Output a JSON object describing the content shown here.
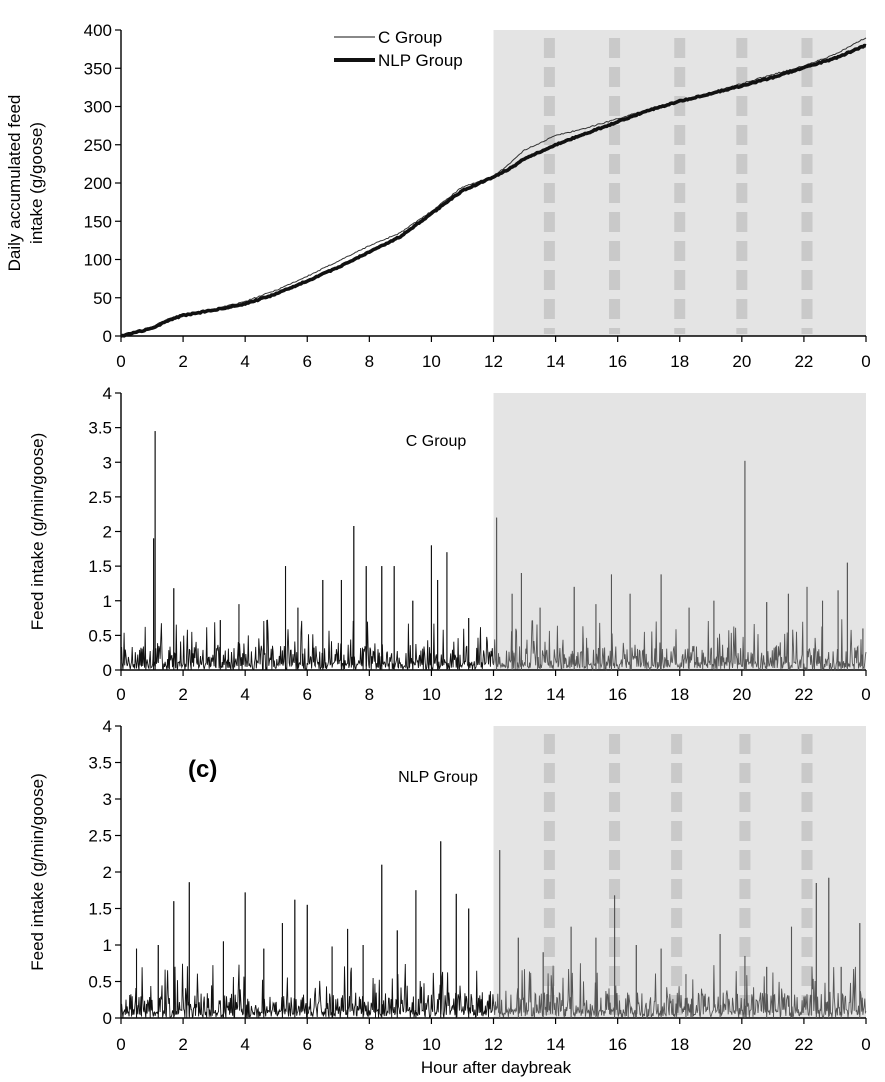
{
  "chart_data": [
    {
      "type": "line",
      "id": "panel-a",
      "ylabel_lines": [
        "Daily accumulated feed",
        "intake (g/goose)"
      ],
      "xlabel": "",
      "ylim": [
        0,
        400
      ],
      "yticks": [
        "0",
        "50",
        "100",
        "150",
        "200",
        "250",
        "300",
        "350",
        "400"
      ],
      "xlim": [
        0,
        24
      ],
      "xticks": [
        "0",
        "2",
        "4",
        "6",
        "8",
        "10",
        "12",
        "14",
        "16",
        "18",
        "20",
        "22",
        "0"
      ],
      "dark_period": [
        12,
        24
      ],
      "light_pulses": [
        13.8,
        15.9,
        18.0,
        20.0,
        22.1
      ],
      "legend": [
        {
          "name": "C Group",
          "style": "thin"
        },
        {
          "name": "NLP Group",
          "style": "thick"
        }
      ],
      "series": [
        {
          "name": "C Group",
          "x": [
            0,
            1,
            1.5,
            2,
            3,
            4,
            5,
            6,
            7,
            8,
            9,
            10,
            11,
            12,
            12.5,
            13,
            14,
            15,
            16,
            17,
            18,
            19,
            20,
            21,
            22,
            23,
            24
          ],
          "values": [
            0,
            12,
            22,
            28,
            35,
            45,
            60,
            78,
            98,
            118,
            135,
            163,
            195,
            208,
            225,
            243,
            262,
            272,
            284,
            296,
            307,
            318,
            330,
            342,
            353,
            368,
            390
          ]
        },
        {
          "name": "NLP Group",
          "x": [
            0,
            1,
            1.5,
            2,
            3,
            4,
            5,
            6,
            7,
            8,
            9,
            10,
            11,
            12,
            12.5,
            13,
            14,
            15,
            16,
            17,
            18,
            19,
            20,
            21,
            22,
            23,
            24
          ],
          "values": [
            0,
            10,
            20,
            27,
            34,
            42,
            55,
            72,
            90,
            110,
            130,
            160,
            190,
            208,
            218,
            232,
            250,
            265,
            280,
            295,
            307,
            317,
            327,
            338,
            351,
            363,
            380
          ]
        }
      ]
    },
    {
      "type": "line",
      "id": "panel-b",
      "ylabel": "Feed intake (g/min/goose)",
      "annotation": "C Group",
      "ylim": [
        0,
        4
      ],
      "yticks": [
        "0",
        "0.5",
        "1",
        "1.5",
        "2",
        "2.5",
        "3",
        "3.5",
        "4"
      ],
      "xlim": [
        0,
        24
      ],
      "xticks": [
        "0",
        "2",
        "4",
        "6",
        "8",
        "10",
        "12",
        "14",
        "16",
        "18",
        "20",
        "22",
        "0"
      ],
      "dark_period": [
        12,
        24
      ],
      "baseline": [
        0,
        0.3
      ],
      "peaks": {
        "x": [
          1.1,
          1.05,
          1.7,
          3.2,
          3.8,
          4.7,
          5.3,
          5.7,
          6.5,
          7.1,
          7.5,
          7.9,
          8.4,
          8.8,
          9.4,
          10.0,
          10.2,
          10.5,
          11.2,
          12.1,
          12.6,
          12.9,
          13.5,
          14.6,
          15.3,
          15.8,
          16.4,
          17.4,
          18.3,
          19.1,
          20.1,
          20.8,
          21.5,
          22.1,
          22.6,
          23.1,
          23.4,
          23.9
        ],
        "values": [
          3.45,
          1.9,
          1.18,
          0.72,
          0.95,
          0.72,
          1.5,
          0.9,
          1.3,
          1.3,
          2.08,
          1.5,
          1.5,
          1.5,
          1.0,
          1.8,
          1.3,
          1.7,
          0.75,
          2.2,
          1.1,
          1.4,
          0.9,
          1.2,
          0.95,
          1.38,
          1.1,
          1.38,
          0.9,
          1.0,
          3.02,
          0.98,
          1.1,
          1.2,
          1.0,
          1.15,
          1.55,
          0.6
        ]
      }
    },
    {
      "type": "line",
      "id": "panel-c",
      "ylabel": "Feed intake (g/min/goose)",
      "annotation": "NLP Group",
      "panel_tag": "(c)",
      "xlabel": "Hour after daybreak",
      "ylim": [
        0,
        4
      ],
      "yticks": [
        "0",
        "0.5",
        "1",
        "1.5",
        "2",
        "2.5",
        "3",
        "3.5",
        "4"
      ],
      "xlim": [
        0,
        24
      ],
      "xticks": [
        "0",
        "2",
        "4",
        "6",
        "8",
        "10",
        "12",
        "14",
        "16",
        "18",
        "20",
        "22",
        "0"
      ],
      "dark_period": [
        12,
        24
      ],
      "light_pulses": [
        13.8,
        15.9,
        17.9,
        20.1,
        22.1
      ],
      "baseline": [
        0,
        0.3
      ],
      "peaks": {
        "x": [
          0.5,
          1.2,
          1.7,
          2.2,
          3.3,
          4.0,
          4.6,
          5.2,
          5.6,
          6.0,
          6.8,
          7.3,
          7.8,
          8.4,
          8.9,
          9.5,
          10.3,
          10.8,
          11.2,
          12.2,
          12.8,
          13.6,
          14.5,
          15.3,
          15.9,
          16.6,
          17.4,
          18.2,
          19.3,
          20.1,
          20.8,
          21.6,
          22.4,
          22.8,
          23.2,
          23.8
        ],
        "values": [
          0.95,
          1.0,
          1.6,
          1.86,
          1.05,
          1.72,
          0.95,
          1.3,
          1.62,
          1.55,
          0.98,
          1.22,
          1.0,
          2.1,
          1.2,
          1.75,
          2.42,
          1.7,
          1.5,
          2.3,
          1.1,
          0.9,
          1.25,
          1.1,
          1.68,
          1.0,
          0.95,
          0.6,
          1.15,
          0.85,
          0.7,
          1.25,
          1.85,
          1.92,
          0.7,
          1.3
        ]
      }
    }
  ]
}
